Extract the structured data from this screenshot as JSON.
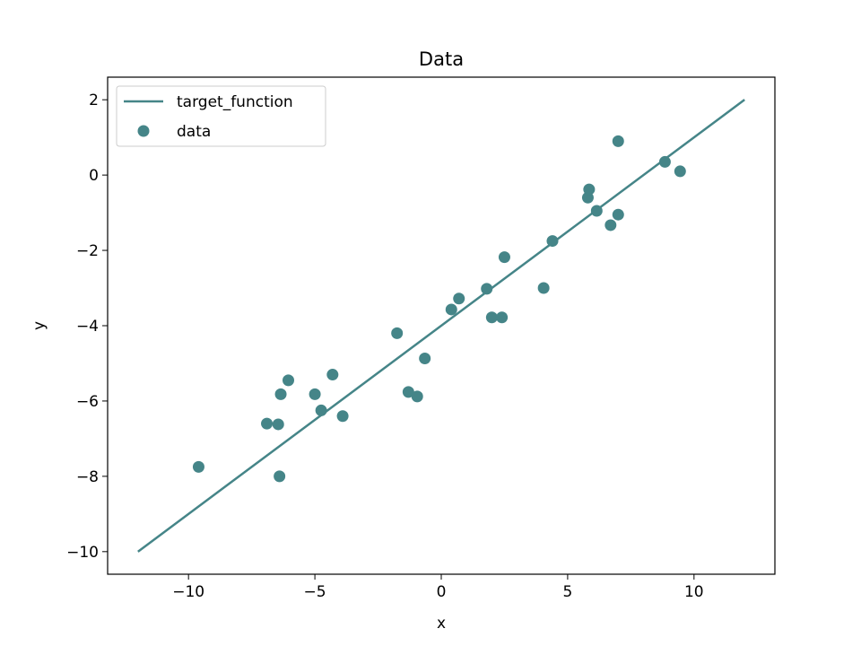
{
  "chart_data": {
    "type": "scatter",
    "title": "Data",
    "xlabel": "x",
    "ylabel": "y",
    "xlim": [
      -13.2,
      13.2
    ],
    "ylim": [
      -10.6,
      2.6
    ],
    "xticks": [
      -10,
      -5,
      0,
      5,
      10
    ],
    "yticks": [
      -10,
      -8,
      -6,
      -4,
      -2,
      0,
      2
    ],
    "xtick_labels": [
      "−10",
      "−5",
      "0",
      "5",
      "10"
    ],
    "ytick_labels": [
      "−10",
      "−8",
      "−6",
      "−4",
      "−2",
      "0",
      "2"
    ],
    "grid": false,
    "legend": {
      "placement": "top-left",
      "entries": [
        "target_function",
        "data"
      ]
    },
    "colors": {
      "series": "#458588"
    },
    "series": [
      {
        "name": "target_function",
        "kind": "line",
        "x": [
          -12,
          12
        ],
        "y": [
          -10,
          2
        ]
      },
      {
        "name": "data",
        "kind": "scatter",
        "x": [
          -9.6,
          -6.9,
          -6.45,
          -6.4,
          -6.35,
          -6.05,
          -5.0,
          -4.75,
          -4.3,
          -3.9,
          -1.75,
          -1.3,
          -0.95,
          -0.65,
          0.4,
          0.7,
          1.8,
          2.0,
          2.4,
          2.5,
          4.05,
          4.4,
          5.8,
          5.85,
          6.15,
          6.7,
          7.0,
          7.0,
          8.85,
          9.45
        ],
        "y": [
          -7.75,
          -6.6,
          -6.62,
          -8.0,
          -5.82,
          -5.45,
          -5.82,
          -6.25,
          -5.3,
          -6.4,
          -4.2,
          -5.76,
          -5.88,
          -4.87,
          -3.57,
          -3.28,
          -3.02,
          -3.78,
          -3.78,
          -2.18,
          -3.0,
          -1.75,
          -0.6,
          -0.38,
          -0.95,
          -1.33,
          0.9,
          -1.05,
          0.35,
          0.1
        ]
      }
    ]
  }
}
